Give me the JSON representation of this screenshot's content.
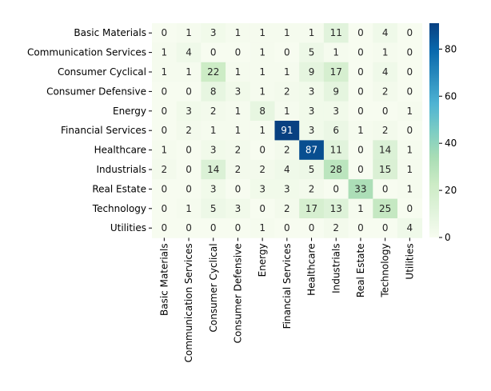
{
  "chart_data": {
    "type": "heatmap",
    "title": "",
    "xlabel": "",
    "ylabel": "",
    "row_labels": [
      "Basic Materials",
      "Communication Services",
      "Consumer Cyclical",
      "Consumer Defensive",
      "Energy",
      "Financial Services",
      "Healthcare",
      "Industrials",
      "Real Estate",
      "Technology",
      "Utilities"
    ],
    "col_labels": [
      "Basic Materials",
      "Communication Services",
      "Consumer Cyclical",
      "Consumer Defensive",
      "Energy",
      "Financial Services",
      "Healthcare",
      "Industrials",
      "Real Estate",
      "Technology",
      "Utilities"
    ],
    "values": [
      [
        0,
        1,
        3,
        1,
        1,
        1,
        1,
        11,
        0,
        4,
        0
      ],
      [
        1,
        4,
        0,
        0,
        1,
        0,
        5,
        1,
        0,
        1,
        0
      ],
      [
        1,
        1,
        22,
        1,
        1,
        1,
        9,
        17,
        0,
        4,
        0
      ],
      [
        0,
        0,
        8,
        3,
        1,
        2,
        3,
        9,
        0,
        2,
        0
      ],
      [
        0,
        3,
        2,
        1,
        8,
        1,
        3,
        3,
        0,
        0,
        1
      ],
      [
        0,
        2,
        1,
        1,
        1,
        91,
        3,
        6,
        1,
        2,
        0
      ],
      [
        1,
        0,
        3,
        2,
        0,
        2,
        87,
        11,
        0,
        14,
        1
      ],
      [
        2,
        0,
        14,
        2,
        2,
        4,
        5,
        28,
        0,
        15,
        1
      ],
      [
        0,
        0,
        3,
        0,
        3,
        3,
        2,
        0,
        33,
        0,
        1
      ],
      [
        0,
        1,
        5,
        3,
        0,
        2,
        17,
        13,
        1,
        25,
        0
      ],
      [
        0,
        0,
        0,
        0,
        1,
        0,
        0,
        2,
        0,
        0,
        4
      ]
    ],
    "colormap": "GnBu",
    "colorbar": {
      "vmin": 0,
      "vmax": 91,
      "ticks": [
        0,
        20,
        40,
        60,
        80
      ]
    },
    "annotations": true,
    "grid": false
  }
}
